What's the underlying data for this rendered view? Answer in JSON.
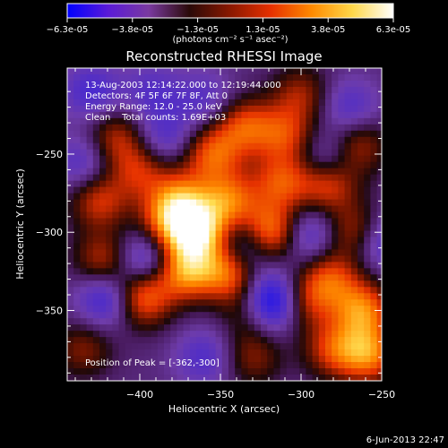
{
  "colorbar": {
    "ticks": [
      "-6.3e-05",
      "-3.8e-05",
      "-1.3e-05",
      "1.3e-05",
      "3.8e-05",
      "6.3e-05"
    ],
    "units": "(photons cm⁻² s⁻¹ asec⁻²)",
    "colors": [
      "#0000ff",
      "#5a1ad8",
      "#7a3aa0",
      "#2a0a08",
      "#8a1800",
      "#e63000",
      "#ff8a00",
      "#ffd84a",
      "#ffffff"
    ]
  },
  "chart_data": {
    "type": "heatmap",
    "title": "Reconstructed RHESSI Image",
    "xlabel": "Heliocentric X (arcsec)",
    "ylabel": "Heliocentric Y (arcsec)",
    "xlim": [
      -445,
      -250
    ],
    "ylim": [
      -395,
      -195
    ],
    "x_ticks": [
      -400,
      -350,
      -300,
      -250
    ],
    "y_ticks": [
      -250,
      -300,
      -350
    ],
    "x_tick_labels": [
      "−400",
      "−350",
      "−300",
      "−250"
    ],
    "y_tick_labels": [
      "−250",
      "−300",
      "−350"
    ],
    "annotations": [
      "13-Aug-2003 12:14:22.000 to 12:19:44.000",
      "Detectors: 4F 5F 6F 7F 8F, Att 0",
      "Energy Range: 12.0 - 25.0 keV",
      "Clean    Total counts: 1.69E+03"
    ],
    "peak_label": "Position of Peak = [-362,-300]",
    "blobs": [
      {
        "x": -365,
        "y": -300,
        "v": 1.0
      },
      {
        "x": -372,
        "y": -325,
        "v": 0.75
      },
      {
        "x": -345,
        "y": -325,
        "v": 0.7
      },
      {
        "x": -375,
        "y": -278,
        "v": 0.55
      },
      {
        "x": -355,
        "y": -250,
        "v": 0.6
      },
      {
        "x": -335,
        "y": -232,
        "v": 0.55
      },
      {
        "x": -310,
        "y": -238,
        "v": 0.5
      },
      {
        "x": -312,
        "y": -268,
        "v": 0.55
      },
      {
        "x": -318,
        "y": -300,
        "v": 0.8
      },
      {
        "x": -345,
        "y": -280,
        "v": 0.65
      },
      {
        "x": -283,
        "y": -268,
        "v": 0.65
      },
      {
        "x": -265,
        "y": -245,
        "v": 0.45
      },
      {
        "x": -300,
        "y": -212,
        "v": 0.4
      },
      {
        "x": -415,
        "y": -240,
        "v": 0.45
      },
      {
        "x": -425,
        "y": -280,
        "v": 0.5
      },
      {
        "x": -400,
        "y": -260,
        "v": 0.45
      },
      {
        "x": -422,
        "y": -318,
        "v": 0.5
      },
      {
        "x": -400,
        "y": -335,
        "v": 0.45
      },
      {
        "x": -398,
        "y": -345,
        "v": 0.4
      },
      {
        "x": -382,
        "y": -292,
        "v": 0.55
      },
      {
        "x": -265,
        "y": -300,
        "v": 0.55
      },
      {
        "x": -282,
        "y": -330,
        "v": 0.55
      },
      {
        "x": -262,
        "y": -350,
        "v": 0.7
      },
      {
        "x": -258,
        "y": -378,
        "v": 0.7
      },
      {
        "x": -300,
        "y": -345,
        "v": 0.5
      },
      {
        "x": -330,
        "y": -350,
        "v": 0.4
      },
      {
        "x": -330,
        "y": -380,
        "v": 0.35
      },
      {
        "x": -280,
        "y": -375,
        "v": 0.5
      },
      {
        "x": -435,
        "y": -375,
        "v": 0.35
      },
      {
        "x": -392,
        "y": -210,
        "v": -0.3
      },
      {
        "x": -420,
        "y": -342,
        "v": -0.55
      },
      {
        "x": -398,
        "y": -320,
        "v": -0.6
      },
      {
        "x": -318,
        "y": -345,
        "v": -1.0
      },
      {
        "x": -335,
        "y": -310,
        "v": -0.45
      },
      {
        "x": -297,
        "y": -302,
        "v": -0.45
      },
      {
        "x": -252,
        "y": -305,
        "v": -0.5
      },
      {
        "x": -283,
        "y": -255,
        "v": -0.45
      },
      {
        "x": -270,
        "y": -220,
        "v": -0.35
      },
      {
        "x": -430,
        "y": -210,
        "v": -0.4
      },
      {
        "x": -385,
        "y": -240,
        "v": -0.35
      },
      {
        "x": -360,
        "y": -215,
        "v": -0.3
      },
      {
        "x": -360,
        "y": -380,
        "v": -0.35
      },
      {
        "x": -435,
        "y": -255,
        "v": -0.35
      }
    ]
  },
  "footer": {
    "timestamp": "6-Jun-2013 22:47"
  }
}
